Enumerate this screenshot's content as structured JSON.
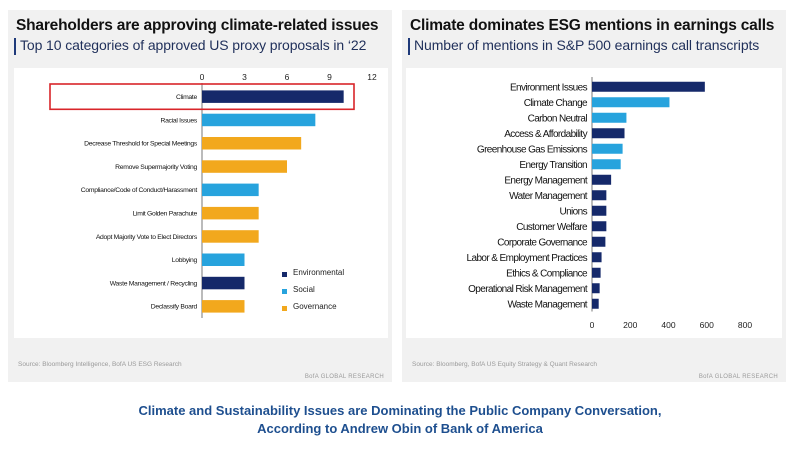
{
  "left_panel": {
    "title": "Shareholders are approving climate-related issues",
    "subtitle": "Top 10 categories of approved US proxy proposals in ‘22",
    "source": "Source:  Bloomberg  Intelligence,  BofA  US ESG  Research",
    "brand": "BofA GLOBAL RESEARCH"
  },
  "right_panel": {
    "title": "Climate dominates ESG mentions in earnings calls",
    "subtitle": "Number of mentions in S&P 500 earnings call transcripts",
    "source": "Source:  Bloomberg,  BofA  US Equity Strategy  &  Quant  Research",
    "brand": "BofA GLOBAL RESEARCH"
  },
  "caption": {
    "line1": "Climate and Sustainability Issues are Dominating the Public Company Conversation,",
    "line2": "According to Andrew Obin of Bank of America"
  },
  "colors": {
    "environmental": "#15296a",
    "social": "#27a3dd",
    "governance": "#f2a81d",
    "highlight": "#d9252a"
  },
  "chart_data": [
    {
      "type": "bar",
      "orientation": "horizontal",
      "title": "Shareholders are approving climate-related issues",
      "subtitle": "Top 10 categories of approved US proxy proposals in ‘22",
      "categories": [
        "Climate",
        "Racial Issues",
        "Decrease Threshold for Special Meetings",
        "Remove Supermajority Voting",
        "Compliance/Code of Conduct/Harassment",
        "Limit Golden Parachute",
        "Adopt Majority Vote to Elect Directors",
        "Lobbying",
        "Waste Management / Recycling",
        "Declassify Board"
      ],
      "values": [
        10,
        8,
        7,
        6,
        4,
        4,
        4,
        3,
        3,
        3
      ],
      "groups": [
        "Environmental",
        "Social",
        "Governance",
        "Governance",
        "Social",
        "Governance",
        "Governance",
        "Social",
        "Environmental",
        "Governance"
      ],
      "legend": [
        "Environmental",
        "Social",
        "Governance"
      ],
      "legend_position": "right",
      "xticks": [
        0,
        3,
        6,
        9,
        12
      ],
      "xlim": [
        0,
        12
      ],
      "highlighted_category": "Climate",
      "grid": false
    },
    {
      "type": "bar",
      "orientation": "horizontal",
      "title": "Climate dominates ESG mentions in earnings calls",
      "subtitle": "Number of mentions in S&P 500 earnings call transcripts",
      "categories": [
        "Environment Issues",
        "Climate Change",
        "Carbon Neutral",
        "Access & Affordability",
        "Greenhouse Gas Emissions",
        "Energy Transition",
        "Energy Management",
        "Water Management",
        "Unions",
        "Customer Welfare",
        "Corporate Governance",
        "Labor & Employment Practices",
        "Ethics & Compliance",
        "Operational Risk Management",
        "Waste Management"
      ],
      "values": [
        590,
        405,
        180,
        170,
        160,
        150,
        100,
        75,
        75,
        75,
        70,
        50,
        45,
        40,
        35
      ],
      "groups": [
        "Environmental",
        "Social",
        "Social",
        "Environmental",
        "Social",
        "Social",
        "Environmental",
        "Environmental",
        "Environmental",
        "Environmental",
        "Environmental",
        "Environmental",
        "Environmental",
        "Environmental",
        "Environmental"
      ],
      "xticks": [
        0,
        200,
        400,
        600,
        800
      ],
      "xlim": [
        0,
        800
      ],
      "grid": false
    }
  ]
}
